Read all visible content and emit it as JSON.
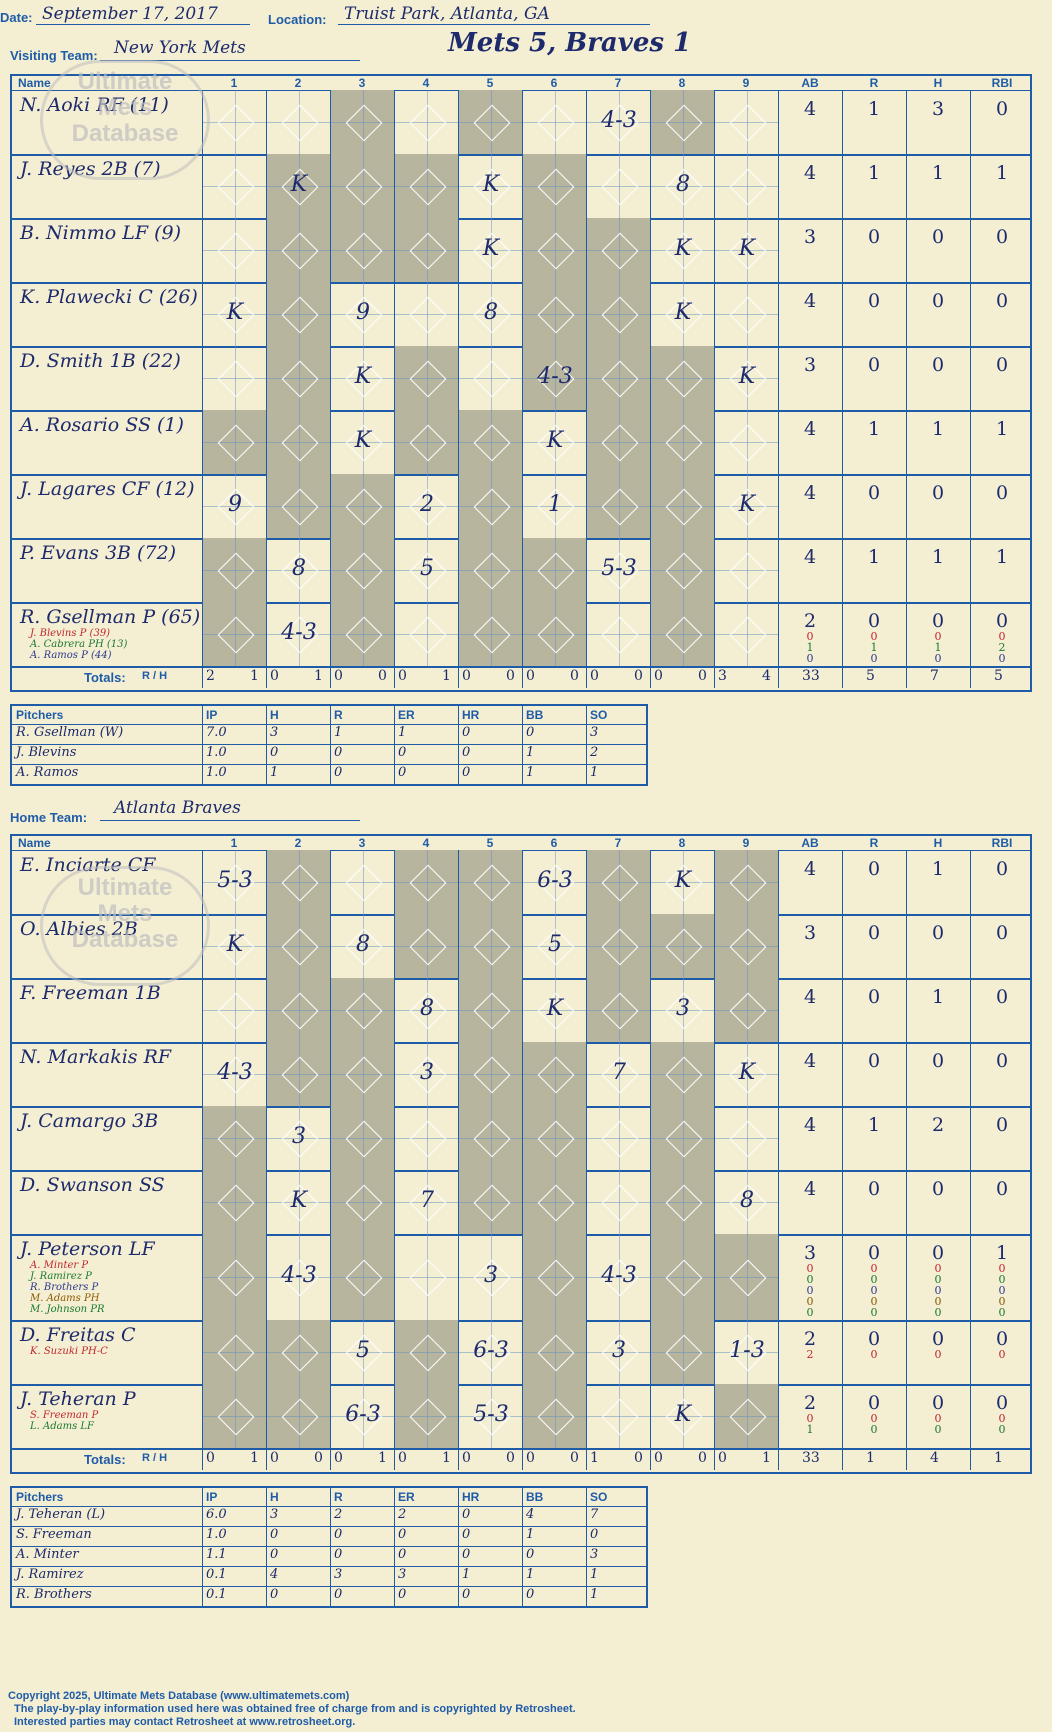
{
  "header": {
    "date_label": "Date:",
    "date": "September 17, 2017",
    "location_label": "Location:",
    "location": "Truist Park, Atlanta, GA",
    "visiting_label": "Visiting Team:",
    "visiting_team": "New York Mets",
    "result": "Mets 5, Braves 1",
    "home_label": "Home Team:",
    "home_team": "Atlanta Braves"
  },
  "grid_header": {
    "name": "Name",
    "innings": [
      "1",
      "2",
      "3",
      "4",
      "5",
      "6",
      "7",
      "8",
      "9"
    ],
    "stats": [
      "AB",
      "R",
      "H",
      "RBI"
    ]
  },
  "watermark": {
    "line1": "Ultimate",
    "line2": "Mets",
    "line3": "Database",
    "url": "ultimatemets.com"
  },
  "visitors": {
    "batters": [
      {
        "name": "N. Aoki RF (11)",
        "subs": [],
        "plays": [
          "",
          "",
          "",
          "",
          "",
          "",
          "4-3",
          "",
          ""
        ],
        "ab": "4",
        "r": "1",
        "h": "3",
        "rbi": "0"
      },
      {
        "name": "J. Reyes 2B (7)",
        "subs": [],
        "plays": [
          "",
          "K",
          "",
          "",
          "K",
          "",
          "",
          "8",
          ""
        ],
        "ab": "4",
        "r": "1",
        "h": "1",
        "rbi": "1"
      },
      {
        "name": "B. Nimmo LF (9)",
        "subs": [],
        "plays": [
          "",
          "",
          "",
          "",
          "K",
          "",
          "",
          "K",
          "K"
        ],
        "ab": "3",
        "r": "0",
        "h": "0",
        "rbi": "0"
      },
      {
        "name": "K. Plawecki C (26)",
        "subs": [],
        "plays": [
          "K",
          "",
          "9",
          "",
          "8",
          "",
          "",
          "K",
          ""
        ],
        "ab": "4",
        "r": "0",
        "h": "0",
        "rbi": "0"
      },
      {
        "name": "D. Smith 1B (22)",
        "subs": [],
        "plays": [
          "",
          "",
          "K",
          "",
          "",
          "4-3",
          "",
          "",
          "K"
        ],
        "ab": "3",
        "r": "0",
        "h": "0",
        "rbi": "0"
      },
      {
        "name": "A. Rosario SS (1)",
        "subs": [],
        "plays": [
          "",
          "",
          "K",
          "",
          "",
          "K",
          "",
          "",
          ""
        ],
        "ab": "4",
        "r": "1",
        "h": "1",
        "rbi": "1"
      },
      {
        "name": "J. Lagares CF (12)",
        "subs": [],
        "plays": [
          "9",
          "",
          "",
          "2",
          "",
          "1",
          "",
          "",
          "K"
        ],
        "ab": "4",
        "r": "0",
        "h": "0",
        "rbi": "0"
      },
      {
        "name": "P. Evans 3B (72)",
        "subs": [],
        "plays": [
          "",
          "8",
          "",
          "5",
          "",
          "",
          "5-3",
          "",
          ""
        ],
        "ab": "4",
        "r": "1",
        "h": "1",
        "rbi": "1"
      },
      {
        "name": "R. Gsellman P (65)",
        "subs": [
          "J. Blevins P (39)",
          "A. Cabrera PH (13)",
          "A. Ramos P (44)"
        ],
        "plays": [
          "",
          "4-3",
          "",
          "",
          "",
          "",
          "",
          "",
          ""
        ],
        "ab": "2",
        "r": "0",
        "h": "0",
        "rbi": "0",
        "sub_stats": [
          [
            "0",
            "0",
            "0",
            "0"
          ],
          [
            "1",
            "1",
            "1",
            "2"
          ],
          [
            "0",
            "0",
            "0",
            "0"
          ]
        ]
      }
    ],
    "totals_label": "Totals:",
    "rh_label": "R / H",
    "inning_totals": [
      [
        "2",
        "1"
      ],
      [
        "0",
        "1"
      ],
      [
        "0",
        "0"
      ],
      [
        "0",
        "1"
      ],
      [
        "0",
        "0"
      ],
      [
        "0",
        "0"
      ],
      [
        "0",
        "0"
      ],
      [
        "0",
        "0"
      ],
      [
        "3",
        "4"
      ]
    ],
    "totals": {
      "ab": "33",
      "r": "5",
      "h": "7",
      "rbi": "5"
    },
    "pitchers_header": [
      "Pitchers",
      "IP",
      "H",
      "R",
      "ER",
      "HR",
      "BB",
      "SO"
    ],
    "pitchers": [
      [
        "R. Gsellman (W)",
        "7.0",
        "3",
        "1",
        "1",
        "0",
        "0",
        "3"
      ],
      [
        "J. Blevins",
        "1.0",
        "0",
        "0",
        "0",
        "0",
        "1",
        "2"
      ],
      [
        "A. Ramos",
        "1.0",
        "1",
        "0",
        "0",
        "0",
        "1",
        "1"
      ]
    ]
  },
  "home": {
    "batters": [
      {
        "name": "E. Inciarte CF",
        "subs": [],
        "plays": [
          "5-3",
          "",
          "",
          "",
          "",
          "6-3",
          "",
          "K",
          ""
        ],
        "ab": "4",
        "r": "0",
        "h": "1",
        "rbi": "0"
      },
      {
        "name": "O. Albies 2B",
        "subs": [],
        "plays": [
          "K",
          "",
          "8",
          "",
          "",
          "5",
          "",
          "",
          ""
        ],
        "ab": "3",
        "r": "0",
        "h": "0",
        "rbi": "0"
      },
      {
        "name": "F. Freeman 1B",
        "subs": [],
        "plays": [
          "",
          "",
          "",
          "8",
          "",
          "K",
          "",
          "3",
          ""
        ],
        "ab": "4",
        "r": "0",
        "h": "1",
        "rbi": "0"
      },
      {
        "name": "N. Markakis RF",
        "subs": [],
        "plays": [
          "4-3",
          "",
          "",
          "3",
          "",
          "",
          "7",
          "",
          "K"
        ],
        "ab": "4",
        "r": "0",
        "h": "0",
        "rbi": "0"
      },
      {
        "name": "J. Camargo 3B",
        "subs": [],
        "plays": [
          "",
          "3",
          "",
          "",
          "",
          "",
          "",
          "",
          ""
        ],
        "ab": "4",
        "r": "1",
        "h": "2",
        "rbi": "0"
      },
      {
        "name": "D. Swanson SS",
        "subs": [],
        "plays": [
          "",
          "K",
          "",
          "7",
          "",
          "",
          "",
          "",
          "8"
        ],
        "ab": "4",
        "r": "0",
        "h": "0",
        "rbi": "0"
      },
      {
        "name": "J. Peterson LF",
        "subs": [
          "A. Minter P",
          "J. Ramirez P",
          "R. Brothers P",
          "M. Adams PH",
          "M. Johnson PR"
        ],
        "plays": [
          "",
          "4-3",
          "",
          "",
          "3",
          "",
          "4-3",
          "",
          ""
        ],
        "ab": "3",
        "r": "0",
        "h": "0",
        "rbi": "1",
        "sub_stats": [
          [
            "0",
            "0",
            "0",
            "0"
          ],
          [
            "0",
            "0",
            "0",
            "0"
          ],
          [
            "0",
            "0",
            "0",
            "0"
          ],
          [
            "0",
            "0",
            "0",
            "0"
          ],
          [
            "0",
            "0",
            "0",
            "0"
          ]
        ]
      },
      {
        "name": "D. Freitas C",
        "subs": [
          "K. Suzuki PH-C"
        ],
        "plays": [
          "",
          "",
          "5",
          "",
          "6-3",
          "",
          "3",
          "",
          "1-3"
        ],
        "ab": "2",
        "r": "0",
        "h": "0",
        "rbi": "0",
        "sub_stats": [
          [
            "2",
            "0",
            "0",
            "0"
          ]
        ]
      },
      {
        "name": "J. Teheran P",
        "subs": [
          "S. Freeman P",
          "L. Adams LF"
        ],
        "plays": [
          "",
          "",
          "6-3",
          "",
          "5-3",
          "",
          "",
          "K",
          ""
        ],
        "ab": "2",
        "r": "0",
        "h": "0",
        "rbi": "0",
        "sub_stats": [
          [
            "0",
            "0",
            "0",
            "0"
          ],
          [
            "1",
            "0",
            "0",
            "0"
          ]
        ]
      }
    ],
    "totals_label": "Totals:",
    "rh_label": "R / H",
    "inning_totals": [
      [
        "0",
        "1"
      ],
      [
        "0",
        "0"
      ],
      [
        "0",
        "1"
      ],
      [
        "0",
        "1"
      ],
      [
        "0",
        "0"
      ],
      [
        "0",
        "0"
      ],
      [
        "1",
        "0"
      ],
      [
        "0",
        "0"
      ],
      [
        "0",
        "1"
      ]
    ],
    "totals": {
      "ab": "33",
      "r": "1",
      "h": "4",
      "rbi": "1"
    },
    "pitchers_header": [
      "Pitchers",
      "IP",
      "H",
      "R",
      "ER",
      "HR",
      "BB",
      "SO"
    ],
    "pitchers": [
      [
        "J. Teheran (L)",
        "6.0",
        "3",
        "2",
        "2",
        "0",
        "4",
        "7"
      ],
      [
        "S. Freeman",
        "1.0",
        "0",
        "0",
        "0",
        "0",
        "1",
        "0"
      ],
      [
        "A. Minter",
        "1.1",
        "0",
        "0",
        "0",
        "0",
        "0",
        "3"
      ],
      [
        "J. Ramirez",
        "0.1",
        "4",
        "3",
        "3",
        "1",
        "1",
        "1"
      ],
      [
        "R. Brothers",
        "0.1",
        "0",
        "0",
        "0",
        "0",
        "0",
        "1"
      ]
    ]
  },
  "footer": {
    "line1": "Copyright 2025, Ultimate Mets Database (www.ultimatemets.com)",
    "line2": "The play-by-play information used here was obtained free of charge from and is copyrighted by Retrosheet.",
    "line3": "Interested parties may contact Retrosheet at www.retrosheet.org."
  }
}
